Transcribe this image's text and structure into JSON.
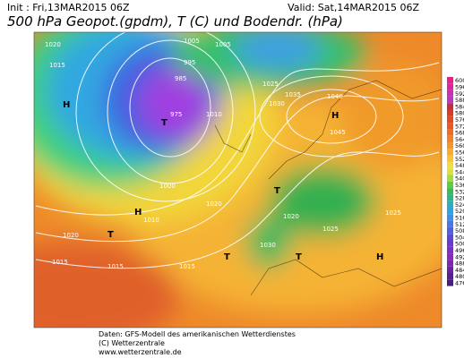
{
  "header": {
    "init": "Init : Fri,13MAR2015 06Z",
    "valid": "Valid: Sat,14MAR2015 06Z",
    "title": "500 hPa Geopot.(gpdm), T (C) und Bodendr. (hPa)"
  },
  "colorbar": {
    "labels": [
      600,
      596,
      592,
      588,
      584,
      580,
      576,
      572,
      568,
      564,
      560,
      556,
      552,
      548,
      544,
      540,
      536,
      532,
      528,
      524,
      520,
      516,
      512,
      508,
      504,
      500,
      496,
      492,
      488,
      484,
      480,
      476
    ]
  },
  "map": {
    "labels": [
      "1020",
      "1015",
      "1005",
      "995",
      "985",
      "975",
      "1000",
      "1010",
      "1025",
      "1030",
      "1035",
      "1040",
      "1045",
      "1020",
      "1015",
      "1030",
      "1025",
      "1015",
      "1020",
      "1005",
      "1010",
      "1025",
      "1020",
      "1015",
      "H",
      "H",
      "H",
      "H",
      "T",
      "T",
      "T",
      "T",
      "T"
    ]
  },
  "footer": {
    "line1": "Daten: GFS-Modell des amerikanischen Wetterdienstes",
    "line2": "(C) Wetterzentrale",
    "line3": "www.wetterzentrale.de"
  }
}
